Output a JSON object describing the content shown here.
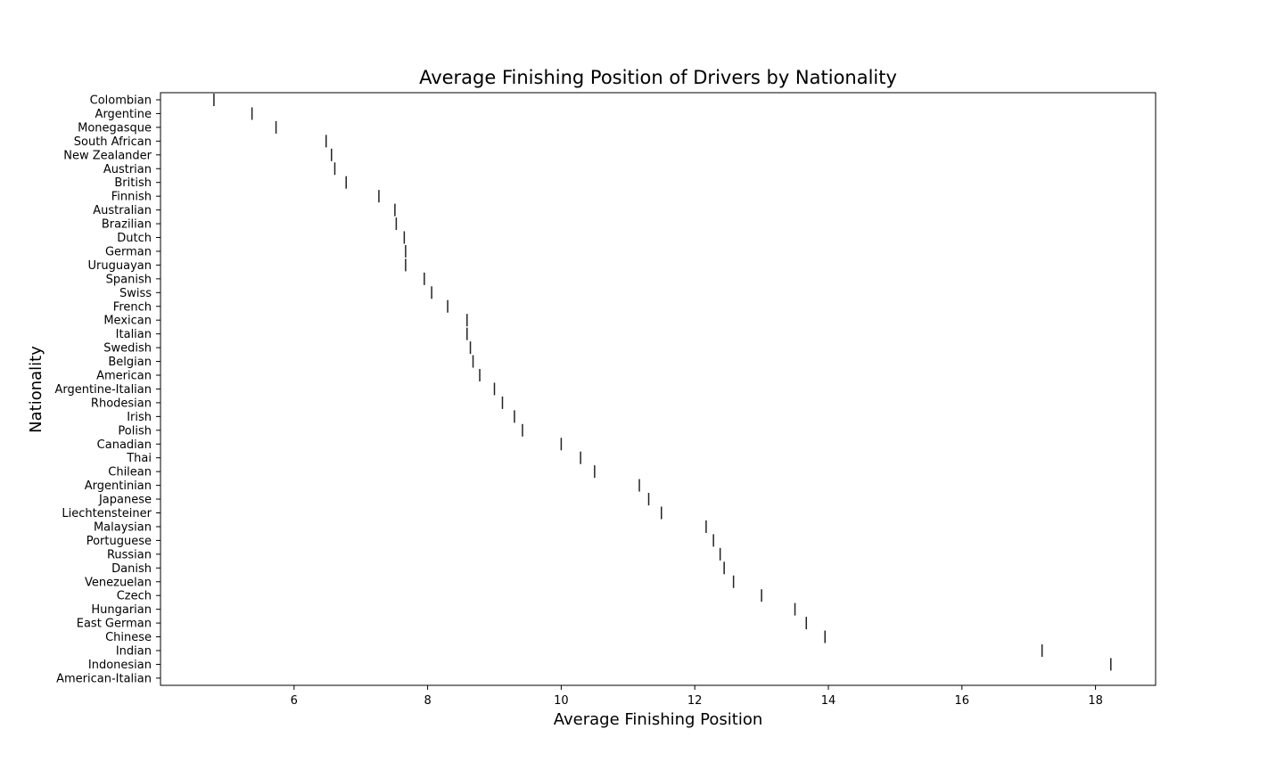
{
  "chart_data": {
    "type": "scatter",
    "marker": "vertical-line",
    "title": "Average Finishing Position of Drivers by Nationality",
    "xlabel": "Average Finishing Position",
    "ylabel": "Nationality",
    "xlim": [
      4.0,
      18.9
    ],
    "x_ticks": [
      6,
      8,
      10,
      12,
      14,
      16,
      18
    ],
    "grid": false,
    "categories": [
      "Colombian",
      "Argentine",
      "Monegasque",
      "South African",
      "New Zealander",
      "Austrian",
      "British",
      "Finnish",
      "Australian",
      "Brazilian",
      "Dutch",
      "German",
      "Uruguayan",
      "Spanish",
      "Swiss",
      "French",
      "Mexican",
      "Italian",
      "Swedish",
      "Belgian",
      "American",
      "Argentine-Italian",
      "Rhodesian",
      "Irish",
      "Polish",
      "Canadian",
      "Thai",
      "Chilean",
      "Argentinian ",
      "Japanese",
      "Liechtensteiner",
      "Malaysian",
      "Portuguese",
      "Russian",
      "Danish",
      "Venezuelan",
      "Czech",
      "Hungarian",
      "East German",
      "Chinese",
      "Indian",
      "Indonesian",
      "American-Italian"
    ],
    "values": [
      4.8,
      5.37,
      5.73,
      6.48,
      6.56,
      6.61,
      6.78,
      7.27,
      7.51,
      7.53,
      7.65,
      7.67,
      7.67,
      7.95,
      8.06,
      8.3,
      8.59,
      8.59,
      8.64,
      8.68,
      8.78,
      9.0,
      9.12,
      9.3,
      9.42,
      10.0,
      10.29,
      10.5,
      11.17,
      11.31,
      11.5,
      12.17,
      12.28,
      12.38,
      12.44,
      12.58,
      13.0,
      13.5,
      13.67,
      13.95,
      17.2,
      18.23,
      null
    ]
  }
}
